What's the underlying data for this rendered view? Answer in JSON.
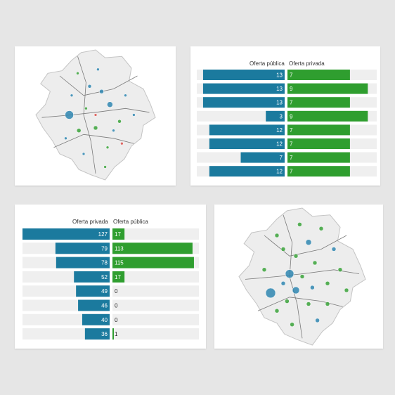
{
  "colors": {
    "blue": "#1b7a9e",
    "green": "#2f9e2f",
    "track": "#efefef",
    "map_fill": "#ededed",
    "map_stroke": "#c4c4c4",
    "road": "#7a7a7a",
    "point_blue": "#2f86b0",
    "point_green": "#3aa23a",
    "point_red": "#d9534f"
  },
  "panel_top_right": {
    "left_header": "Oferta pública",
    "right_header": "Oferta privada",
    "left_max": 14,
    "right_max": 10,
    "rows": [
      {
        "left": 13,
        "right": 7
      },
      {
        "left": 13,
        "right": 9
      },
      {
        "left": 13,
        "right": 7
      },
      {
        "left": 3,
        "right": 9
      },
      {
        "left": 12,
        "right": 7
      },
      {
        "left": 12,
        "right": 7
      },
      {
        "left": 7,
        "right": 7
      },
      {
        "left": 12,
        "right": 7
      }
    ]
  },
  "panel_bottom_left": {
    "left_header": "Oferta privada",
    "right_header": "Oferta pública",
    "left_max": 127,
    "right_max": 122,
    "rows": [
      {
        "left": 127,
        "right": 17
      },
      {
        "left": 79,
        "right": 113
      },
      {
        "left": 78,
        "right": 115
      },
      {
        "left": 52,
        "right": 17
      },
      {
        "left": 49,
        "right": 0
      },
      {
        "left": 46,
        "right": 0
      },
      {
        "left": 40,
        "right": 0
      },
      {
        "left": 36,
        "right": 1
      }
    ]
  },
  "map_top_left": {
    "points": [
      {
        "x": 0.28,
        "y": 0.5,
        "r": 6,
        "c": "blue"
      },
      {
        "x": 0.62,
        "y": 0.42,
        "r": 4,
        "c": "blue"
      },
      {
        "x": 0.5,
        "y": 0.6,
        "r": 3,
        "c": "green"
      },
      {
        "x": 0.55,
        "y": 0.32,
        "r": 3,
        "c": "blue"
      },
      {
        "x": 0.45,
        "y": 0.28,
        "r": 2.5,
        "c": "blue"
      },
      {
        "x": 0.36,
        "y": 0.62,
        "r": 3,
        "c": "green"
      },
      {
        "x": 0.7,
        "y": 0.55,
        "r": 2.5,
        "c": "green"
      },
      {
        "x": 0.4,
        "y": 0.8,
        "r": 2,
        "c": "blue"
      },
      {
        "x": 0.6,
        "y": 0.75,
        "r": 2,
        "c": "green"
      },
      {
        "x": 0.75,
        "y": 0.35,
        "r": 2,
        "c": "blue"
      },
      {
        "x": 0.3,
        "y": 0.35,
        "r": 2,
        "c": "blue"
      },
      {
        "x": 0.5,
        "y": 0.5,
        "r": 2,
        "c": "red"
      },
      {
        "x": 0.65,
        "y": 0.62,
        "r": 2,
        "c": "blue"
      },
      {
        "x": 0.42,
        "y": 0.45,
        "r": 2,
        "c": "green"
      },
      {
        "x": 0.52,
        "y": 0.15,
        "r": 2,
        "c": "blue"
      },
      {
        "x": 0.58,
        "y": 0.9,
        "r": 2,
        "c": "green"
      },
      {
        "x": 0.25,
        "y": 0.68,
        "r": 2,
        "c": "blue"
      },
      {
        "x": 0.72,
        "y": 0.72,
        "r": 2,
        "c": "red"
      },
      {
        "x": 0.82,
        "y": 0.5,
        "r": 2,
        "c": "blue"
      },
      {
        "x": 0.35,
        "y": 0.18,
        "r": 2,
        "c": "green"
      }
    ]
  },
  "map_bottom_right": {
    "points": [
      {
        "x": 0.25,
        "y": 0.62,
        "r": 7,
        "c": "blue"
      },
      {
        "x": 0.4,
        "y": 0.48,
        "r": 6,
        "c": "blue"
      },
      {
        "x": 0.45,
        "y": 0.6,
        "r": 5,
        "c": "blue"
      },
      {
        "x": 0.55,
        "y": 0.25,
        "r": 4,
        "c": "blue"
      },
      {
        "x": 0.48,
        "y": 0.12,
        "r": 3,
        "c": "green"
      },
      {
        "x": 0.6,
        "y": 0.4,
        "r": 3,
        "c": "green"
      },
      {
        "x": 0.35,
        "y": 0.3,
        "r": 3,
        "c": "green"
      },
      {
        "x": 0.7,
        "y": 0.55,
        "r": 3,
        "c": "green"
      },
      {
        "x": 0.3,
        "y": 0.75,
        "r": 3,
        "c": "green"
      },
      {
        "x": 0.55,
        "y": 0.7,
        "r": 3,
        "c": "green"
      },
      {
        "x": 0.62,
        "y": 0.82,
        "r": 3,
        "c": "blue"
      },
      {
        "x": 0.8,
        "y": 0.45,
        "r": 3,
        "c": "green"
      },
      {
        "x": 0.75,
        "y": 0.3,
        "r": 3,
        "c": "blue"
      },
      {
        "x": 0.42,
        "y": 0.85,
        "r": 3,
        "c": "green"
      },
      {
        "x": 0.5,
        "y": 0.5,
        "r": 3,
        "c": "green"
      },
      {
        "x": 0.2,
        "y": 0.45,
        "r": 3,
        "c": "green"
      },
      {
        "x": 0.65,
        "y": 0.15,
        "r": 3,
        "c": "green"
      },
      {
        "x": 0.35,
        "y": 0.55,
        "r": 3,
        "c": "blue"
      },
      {
        "x": 0.85,
        "y": 0.6,
        "r": 3,
        "c": "green"
      },
      {
        "x": 0.58,
        "y": 0.58,
        "r": 3,
        "c": "blue"
      },
      {
        "x": 0.3,
        "y": 0.2,
        "r": 3,
        "c": "green"
      },
      {
        "x": 0.7,
        "y": 0.7,
        "r": 3,
        "c": "green"
      },
      {
        "x": 0.45,
        "y": 0.35,
        "r": 3,
        "c": "green"
      },
      {
        "x": 0.38,
        "y": 0.68,
        "r": 3,
        "c": "green"
      }
    ]
  }
}
